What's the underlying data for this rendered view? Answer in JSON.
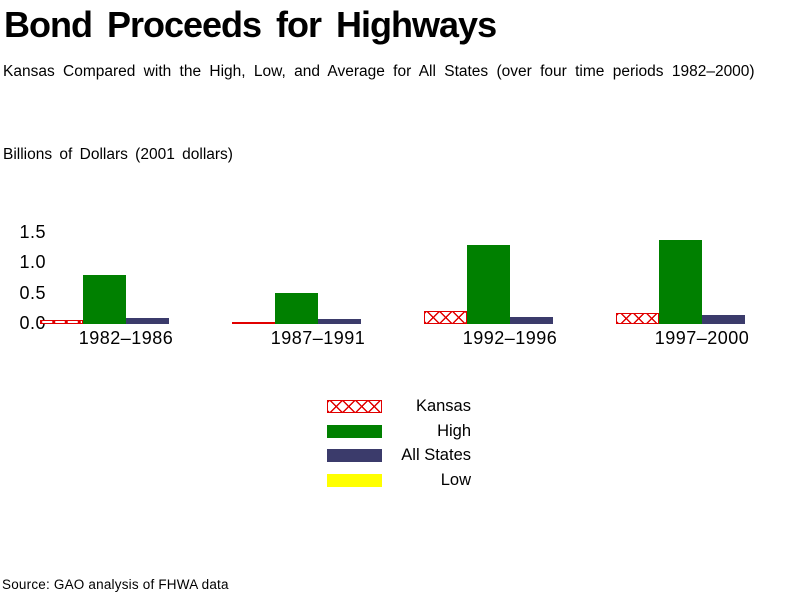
{
  "chart_data": {
    "type": "bar",
    "title": "Bond Proceeds for Highways",
    "subtitle": "Kansas Compared with the High, Low, and Average for All States (over four time periods 1982–2000)",
    "ylabel": "Billions of Dollars (2001 dollars)",
    "ylim": [
      0,
      1.5
    ],
    "ytick_labels": [
      "1.5",
      "1.0",
      "0.5",
      "0.0"
    ],
    "grid": false,
    "axis_lines": false,
    "legend_position": "bottom-center",
    "categories": [
      "1982–1986",
      "1987–1991",
      "1992–1996",
      "1997–2000"
    ],
    "series": [
      {
        "name": "Kansas",
        "style": "crosshatch",
        "color": "#e10000",
        "values": [
          0.06,
          0.03,
          0.22,
          0.18
        ]
      },
      {
        "name": "High",
        "style": "solid",
        "color": "#008000",
        "values": [
          0.8,
          0.5,
          1.3,
          1.38
        ]
      },
      {
        "name": "All States",
        "style": "solid",
        "color": "#3b3b6b",
        "values": [
          0.1,
          0.08,
          0.11,
          0.15
        ]
      },
      {
        "name": "Low",
        "style": "solid",
        "color": "#ffff00",
        "values": [
          0,
          0,
          0,
          0
        ]
      }
    ],
    "source": "Source: GAO analysis of FHWA data"
  }
}
